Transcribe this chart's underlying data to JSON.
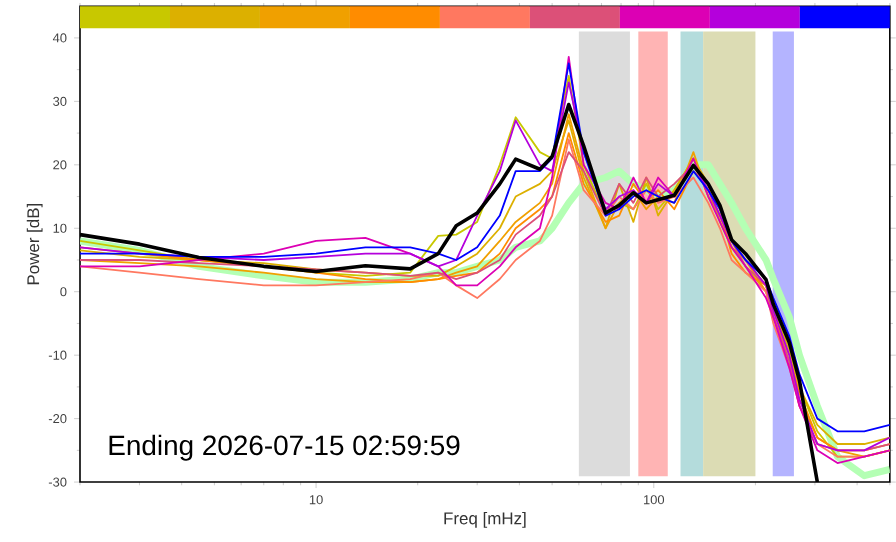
{
  "chart_data": {
    "type": "line",
    "xlabel": "Freq [mHz]",
    "ylabel": "Power [dB]",
    "log": "x",
    "xlim": [
      2,
      500
    ],
    "ylim": [
      -30,
      45
    ],
    "xticks": [
      10,
      100
    ],
    "yticks": [
      -30,
      -20,
      -10,
      0,
      10,
      20,
      30,
      40
    ],
    "grid": false,
    "marker": "none",
    "line_style": "solid",
    "annotations": [
      "Ending 2026-07-15 02:59:59"
    ],
    "x": [
      2,
      3,
      4.5,
      7,
      10,
      14,
      19,
      23,
      26,
      30,
      35,
      39,
      46,
      50,
      56,
      62,
      72,
      79,
      87,
      95,
      103,
      115,
      131,
      145,
      157,
      170,
      187,
      215,
      226,
      252,
      270,
      305,
      350,
      420,
      500
    ],
    "series": [
      {
        "color": "#b4ffb4",
        "values": [
          8,
          6.5,
          4,
          2.5,
          1.5,
          1.5,
          2,
          3,
          3,
          4,
          5,
          7,
          8,
          10,
          14,
          17,
          18,
          19,
          17,
          16,
          15,
          16,
          20,
          20,
          17,
          14,
          10,
          5,
          2,
          -4,
          -10,
          -18,
          -26,
          -29,
          -28
        ]
      },
      {
        "color": "#c8c800",
        "values": [
          8,
          6.5,
          5,
          4,
          3,
          2.5,
          3,
          8.8,
          9,
          11,
          20,
          27.5,
          22,
          21,
          34,
          20,
          12,
          14,
          13,
          17,
          13,
          16,
          21,
          15,
          12,
          8,
          5,
          1,
          -3,
          -9,
          -15,
          -22,
          -26,
          -26,
          -25
        ]
      },
      {
        "color": "#dcb000",
        "values": [
          6.5,
          5.5,
          5,
          4.5,
          3.5,
          3,
          2.5,
          2.5,
          4,
          6,
          10,
          15,
          17,
          19,
          27,
          18,
          10,
          17,
          11,
          18,
          12,
          16,
          21,
          17,
          11,
          7,
          4,
          0,
          -3,
          -9,
          -15,
          -21,
          -24,
          -24,
          -23
        ]
      },
      {
        "color": "#f0a000",
        "values": [
          5,
          4.5,
          4,
          3,
          2,
          1.5,
          1.5,
          2,
          3,
          4,
          8,
          11,
          14,
          17,
          28,
          19,
          10,
          14,
          16,
          13,
          15,
          14,
          22,
          15,
          12,
          7,
          5,
          0,
          -4,
          -11,
          -17,
          -23,
          -25,
          -26,
          -25
        ]
      },
      {
        "color": "#ff8c00",
        "values": [
          7,
          6,
          5,
          4,
          3,
          2,
          1.5,
          2,
          2.5,
          3,
          6,
          10,
          13,
          15,
          25,
          17,
          11,
          12,
          17,
          14,
          16,
          13,
          19,
          17,
          13,
          6,
          3,
          1,
          -4,
          -10,
          -16,
          -23,
          -25,
          -25,
          -24
        ]
      },
      {
        "color": "#ff7860",
        "values": [
          4,
          3,
          2,
          1,
          1,
          1.5,
          2,
          3,
          1,
          -1,
          2,
          5,
          8,
          12,
          24,
          16,
          12,
          15,
          13,
          16,
          14,
          15,
          18,
          14,
          10,
          5,
          3,
          0,
          -5,
          -12,
          -18,
          -24,
          -26,
          -26,
          -25
        ]
      },
      {
        "color": "#dc5078",
        "values": [
          5,
          5,
          4.5,
          4,
          3.5,
          3,
          2.5,
          3,
          2,
          3,
          5,
          9,
          12,
          15,
          22,
          19,
          12,
          17,
          14,
          18,
          15,
          17,
          20,
          16,
          12,
          8,
          4,
          1,
          -4,
          -11,
          -18,
          -24,
          -25,
          -25,
          -24
        ]
      },
      {
        "color": "#dc00b4",
        "values": [
          4,
          4,
          5,
          6,
          8,
          8.5,
          6,
          4,
          1,
          1,
          4,
          7,
          10,
          18,
          37,
          20,
          14,
          13,
          18,
          14,
          18,
          15,
          21,
          15,
          11,
          7,
          4,
          -1,
          -4,
          -12,
          -18,
          -25,
          -27,
          -26,
          -25
        ]
      },
      {
        "color": "#b400dc",
        "values": [
          7,
          6,
          5.5,
          5,
          5.5,
          6,
          6,
          4,
          5,
          12,
          19,
          27,
          20,
          19,
          33,
          22,
          13,
          15,
          16,
          14,
          17,
          15,
          20,
          16,
          12,
          8,
          5,
          1,
          -3,
          -10,
          -17,
          -24,
          -25,
          -25,
          -23
        ]
      },
      {
        "color": "#0000ff",
        "values": [
          6,
          6,
          5.5,
          5.5,
          6,
          7,
          7,
          6,
          5,
          7,
          12,
          19,
          19,
          21,
          36,
          22,
          12,
          13,
          15,
          16,
          15,
          14,
          19,
          16,
          13,
          8,
          5,
          2,
          -1,
          -7,
          -13,
          -20,
          -22,
          -22,
          -21
        ]
      },
      {
        "color": "#000000",
        "values": [
          9,
          7.5,
          5.4,
          4,
          3.2,
          4.1,
          3.6,
          6,
          10.4,
          12.4,
          17,
          20.9,
          19.3,
          21.3,
          29.5,
          23,
          12.4,
          13.6,
          15.6,
          14,
          14.5,
          15.2,
          19.9,
          17,
          13.6,
          8.2,
          6,
          1.9,
          -2,
          -8,
          -14,
          -30,
          null,
          null,
          null
        ]
      }
    ],
    "bands": [
      {
        "axis": "x",
        "from": 60,
        "to": 85,
        "color": "#dcdcdc"
      },
      {
        "axis": "x",
        "from": 90,
        "to": 110,
        "color": "#ffb4b4"
      },
      {
        "axis": "x",
        "from": 120,
        "to": 140,
        "color": "#b4dcdc"
      },
      {
        "axis": "x",
        "from": 140,
        "to": 200,
        "color": "#dcdcb4"
      },
      {
        "axis": "x",
        "from": 225,
        "to": 260,
        "color": "#b4b4ff"
      }
    ]
  }
}
